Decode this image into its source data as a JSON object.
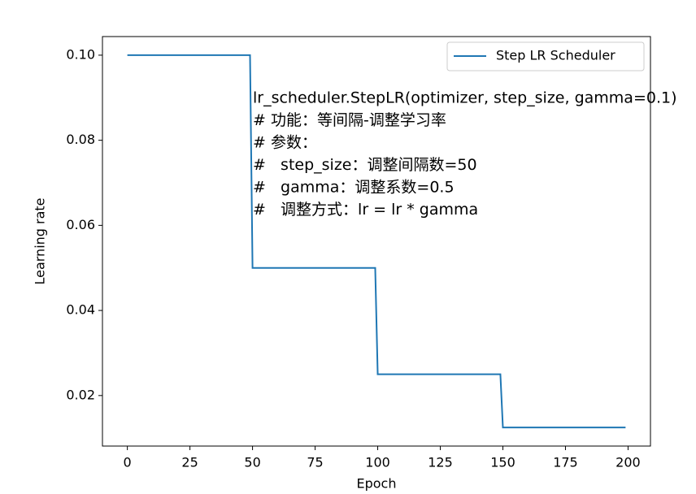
{
  "chart_data": {
    "type": "line",
    "xlabel": "Epoch",
    "ylabel": "Learning rate",
    "x": [
      0,
      49,
      50,
      99,
      100,
      149,
      150,
      199
    ],
    "series": [
      {
        "name": "Step LR Scheduler",
        "color": "#1f77b4",
        "values": [
          0.1,
          0.1,
          0.05,
          0.05,
          0.025,
          0.025,
          0.0125,
          0.0125
        ]
      }
    ],
    "xlim": [
      -9.95,
      208.95
    ],
    "ylim": [
      0.008125,
      0.104375
    ],
    "xticks": [
      0,
      25,
      50,
      75,
      100,
      125,
      150,
      175,
      200
    ],
    "yticks": [
      {
        "value": 0.02,
        "label": "0.02"
      },
      0.04,
      0.06,
      0.08,
      {
        "value": 0.1,
        "label": "0.10"
      }
    ],
    "legend": "upper right",
    "annotations": [
      "lr_scheduler.StepLR(optimizer, step_size, gamma=0.1)",
      "# 功能：等间隔-调整学习率",
      "# 参数：",
      "#   step_size：调整间隔数=50",
      "#   gamma：调整系数=0.5",
      "#   调整方式：lr = lr * gamma"
    ],
    "annotation_color": "#ee3b3b"
  }
}
